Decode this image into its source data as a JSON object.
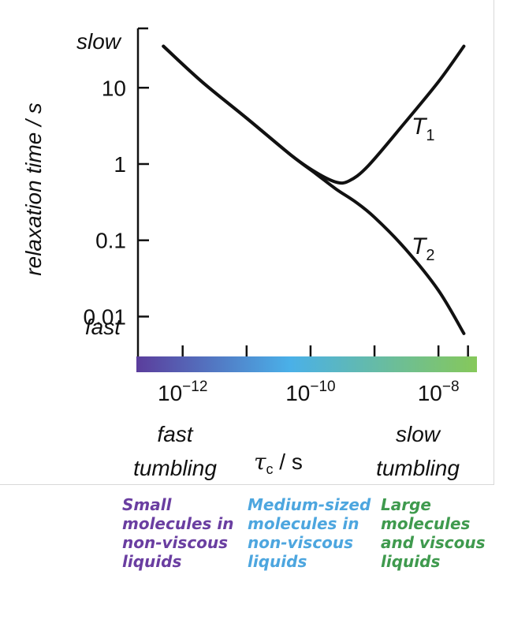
{
  "chart_data": {
    "type": "line",
    "title": "",
    "ylabel": "relaxation time / s",
    "xlabel_symbol": "τ",
    "xlabel_subscript": "c",
    "xlabel_unit": " / s",
    "x_scale": "log",
    "y_scale": "log",
    "xlim": [
      2e-13,
      4e-08
    ],
    "ylim": [
      0.003,
      60
    ],
    "y_ticks": [
      {
        "value": 10,
        "label": "10"
      },
      {
        "value": 1,
        "label": "1"
      },
      {
        "value": 0.1,
        "label": "0.1"
      },
      {
        "value": 0.01,
        "label": "0.01"
      }
    ],
    "y_end_labels": {
      "top": "slow",
      "bottom": "fast"
    },
    "x_ticks": [
      {
        "value": 1e-12,
        "base": "10",
        "exp": "−12"
      },
      {
        "value": 1e-10,
        "base": "10",
        "exp": "−10"
      },
      {
        "value": 1e-08,
        "base": "10",
        "exp": "−8"
      }
    ],
    "x_minor_ticks": [
      1e-11,
      1e-09,
      2.9e-08
    ],
    "x_end_labels": {
      "left": [
        "fast",
        "tumbling"
      ],
      "right": [
        "slow",
        "tumbling"
      ]
    },
    "colorbar": {
      "from": "#5b3d9c",
      "mid": "#4ab0e8",
      "to": "#86c85a"
    },
    "series": [
      {
        "name": "T1",
        "label_base": "T",
        "label_sub": "1",
        "x": [
          5e-13,
          2e-12,
          1e-11,
          5e-11,
          1.2e-10,
          2.5e-10,
          4e-10,
          8e-10,
          3e-09,
          1e-08,
          2.5e-08
        ],
        "y": [
          35,
          12,
          4.0,
          1.3,
          0.78,
          0.58,
          0.6,
          0.95,
          3.5,
          12,
          35
        ]
      },
      {
        "name": "T2",
        "label_base": "T",
        "label_sub": "2",
        "x": [
          5e-13,
          2e-12,
          1e-11,
          5e-11,
          1.2e-10,
          2.5e-10,
          5e-10,
          1e-09,
          3e-09,
          1e-08,
          2.5e-08
        ],
        "y": [
          35,
          12,
          4.0,
          1.3,
          0.75,
          0.47,
          0.32,
          0.2,
          0.078,
          0.022,
          0.006
        ]
      }
    ]
  },
  "categories_notes": [
    {
      "lines": [
        "Small",
        "molecules in",
        "non-viscous",
        "liquids"
      ],
      "color": "#6a3ea1"
    },
    {
      "lines": [
        "Medium-sized",
        "molecules in",
        "non-viscous",
        "liquids"
      ],
      "color": "#4da6df"
    },
    {
      "lines": [
        "Large",
        "molecules",
        "and viscous",
        "liquids"
      ],
      "color": "#3f9a4e"
    }
  ]
}
